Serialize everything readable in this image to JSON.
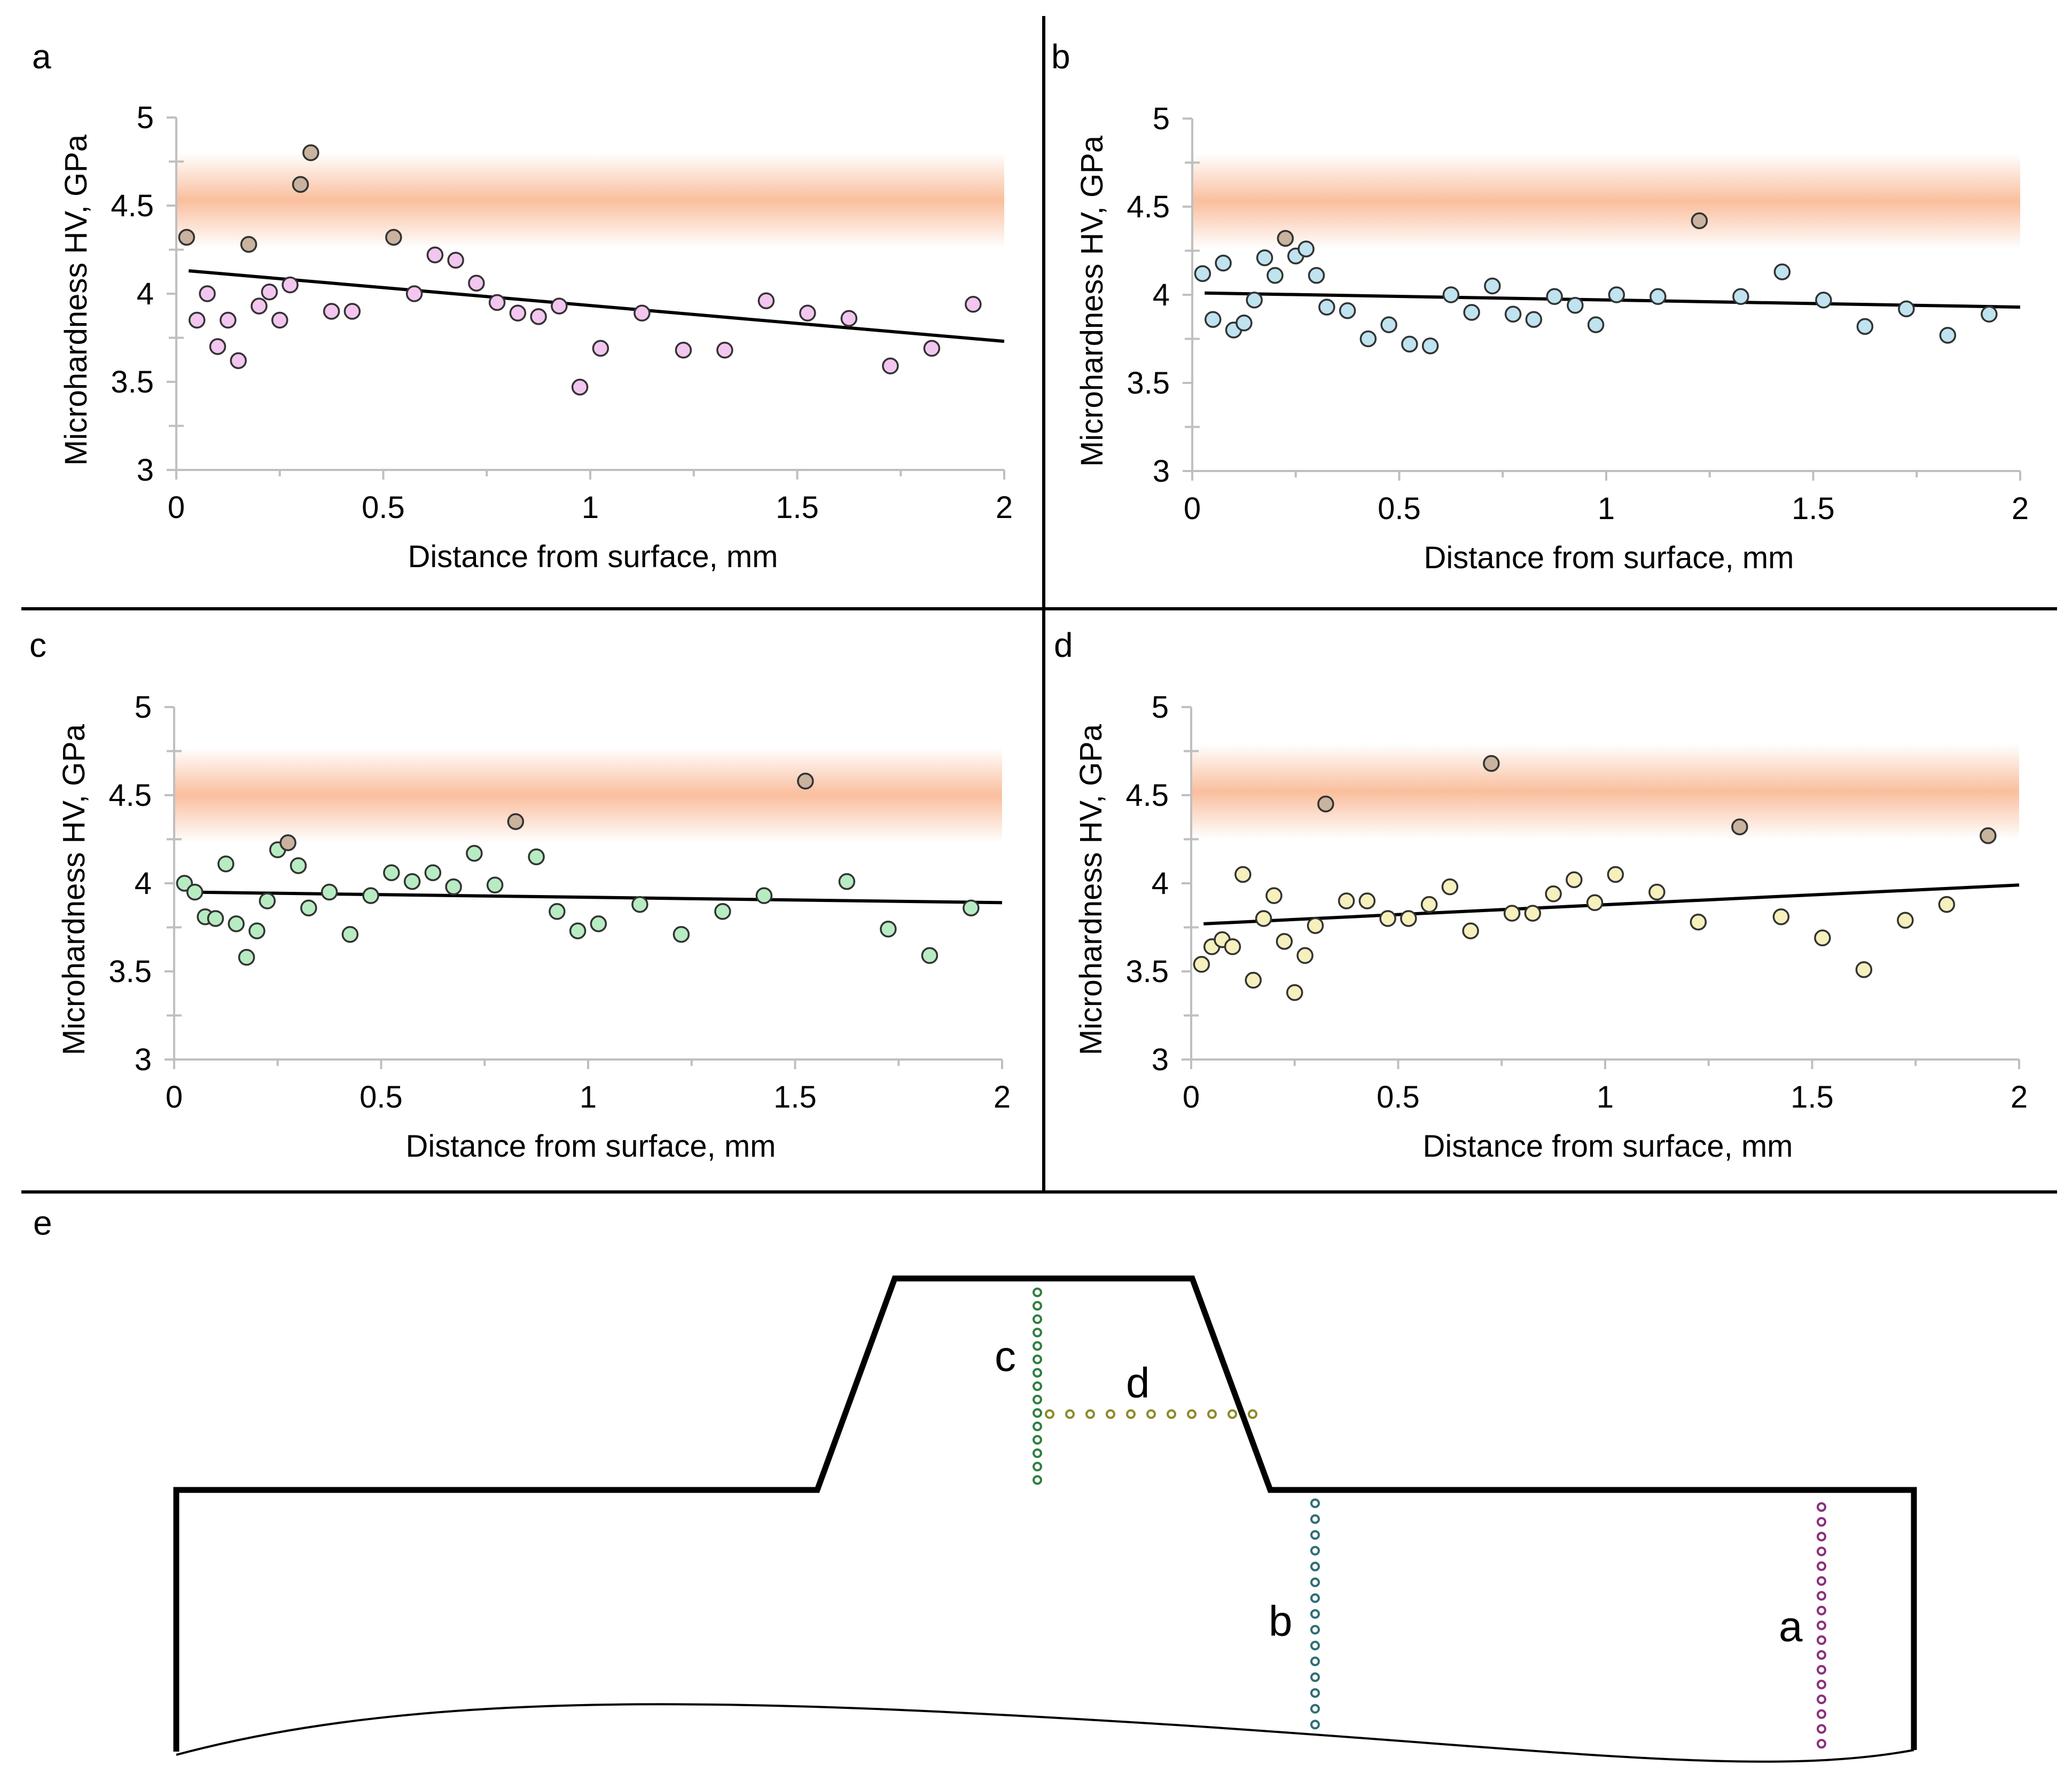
{
  "colors": {
    "band": "#f6935c",
    "panel_a": "#f3c6ef",
    "panel_b": "#bfe3ef",
    "panel_c": "#b7ecc3",
    "panel_d": "#f5f0bc",
    "a_dots": "#8b2f7d",
    "b_dots": "#2f6e77",
    "c_dots": "#2f7f3f",
    "d_dots": "#8c8a2a"
  },
  "chart_data": [
    {
      "id": "a",
      "label": "a",
      "type": "scatter",
      "xlabel": "Distance from surface, mm",
      "ylabel": "Microhardness HV, GPa",
      "xlim": [
        0,
        2
      ],
      "ylim": [
        3,
        5
      ],
      "x_ticks": [
        "0",
        "0.5",
        "1",
        "1.5",
        "2"
      ],
      "y_ticks": [
        "3",
        "3.5",
        "4",
        "4.5",
        "5"
      ],
      "band": {
        "center": 4.53,
        "half_width": 0.27
      },
      "trendline": {
        "x": [
          0.03,
          2.0
        ],
        "y": [
          4.13,
          3.73
        ]
      },
      "points": [
        [
          0.025,
          4.32
        ],
        [
          0.05,
          3.85
        ],
        [
          0.075,
          4.0
        ],
        [
          0.1,
          3.7
        ],
        [
          0.125,
          3.85
        ],
        [
          0.15,
          3.62
        ],
        [
          0.175,
          4.28
        ],
        [
          0.2,
          3.93
        ],
        [
          0.225,
          4.01
        ],
        [
          0.25,
          3.85
        ],
        [
          0.275,
          4.05
        ],
        [
          0.3,
          4.62
        ],
        [
          0.325,
          4.8
        ],
        [
          0.375,
          3.9
        ],
        [
          0.425,
          3.9
        ],
        [
          0.525,
          4.32
        ],
        [
          0.575,
          4.0
        ],
        [
          0.625,
          4.22
        ],
        [
          0.675,
          4.19
        ],
        [
          0.725,
          4.06
        ],
        [
          0.775,
          3.95
        ],
        [
          0.825,
          3.89
        ],
        [
          0.875,
          3.87
        ],
        [
          0.925,
          3.93
        ],
        [
          0.975,
          3.47
        ],
        [
          1.025,
          3.69
        ],
        [
          1.125,
          3.89
        ],
        [
          1.225,
          3.68
        ],
        [
          1.325,
          3.68
        ],
        [
          1.425,
          3.96
        ],
        [
          1.525,
          3.89
        ],
        [
          1.625,
          3.86
        ],
        [
          1.725,
          3.59
        ],
        [
          1.825,
          3.69
        ],
        [
          1.925,
          3.94
        ]
      ]
    },
    {
      "id": "b",
      "label": "b",
      "type": "scatter",
      "xlabel": "Distance from surface, mm",
      "ylabel": "Microhardness HV, GPa",
      "xlim": [
        0,
        2
      ],
      "ylim": [
        3,
        5
      ],
      "x_ticks": [
        "0",
        "0.5",
        "1",
        "1.5",
        "2"
      ],
      "y_ticks": [
        "3",
        "3.5",
        "4",
        "4.5",
        "5"
      ],
      "band": {
        "center": 4.53,
        "half_width": 0.27
      },
      "trendline": {
        "x": [
          0.03,
          2.0
        ],
        "y": [
          4.01,
          3.93
        ]
      },
      "points": [
        [
          0.025,
          4.12
        ],
        [
          0.05,
          3.86
        ],
        [
          0.075,
          4.18
        ],
        [
          0.1,
          3.8
        ],
        [
          0.125,
          3.84
        ],
        [
          0.15,
          3.97
        ],
        [
          0.175,
          4.21
        ],
        [
          0.2,
          4.11
        ],
        [
          0.225,
          4.32
        ],
        [
          0.25,
          4.22
        ],
        [
          0.275,
          4.26
        ],
        [
          0.3,
          4.11
        ],
        [
          0.325,
          3.93
        ],
        [
          0.375,
          3.91
        ],
        [
          0.425,
          3.75
        ],
        [
          0.475,
          3.83
        ],
        [
          0.525,
          3.72
        ],
        [
          0.575,
          3.71
        ],
        [
          0.625,
          4.0
        ],
        [
          0.675,
          3.9
        ],
        [
          0.725,
          4.05
        ],
        [
          0.775,
          3.89
        ],
        [
          0.825,
          3.86
        ],
        [
          0.875,
          3.99
        ],
        [
          0.925,
          3.94
        ],
        [
          0.975,
          3.83
        ],
        [
          1.025,
          4.0
        ],
        [
          1.125,
          3.99
        ],
        [
          1.225,
          4.42
        ],
        [
          1.325,
          3.99
        ],
        [
          1.425,
          4.13
        ],
        [
          1.525,
          3.97
        ],
        [
          1.625,
          3.82
        ],
        [
          1.725,
          3.92
        ],
        [
          1.825,
          3.77
        ],
        [
          1.925,
          3.89
        ]
      ]
    },
    {
      "id": "c",
      "label": "c",
      "type": "scatter",
      "xlabel": "Distance from surface, mm",
      "ylabel": "Microhardness HV, GPa",
      "xlim": [
        0,
        2
      ],
      "ylim": [
        3,
        5
      ],
      "x_ticks": [
        "0",
        "0.5",
        "1",
        "1.5",
        "2"
      ],
      "y_ticks": [
        "3",
        "3.5",
        "4",
        "4.5",
        "5"
      ],
      "band": {
        "center": 4.5,
        "half_width": 0.27
      },
      "trendline": {
        "x": [
          0.03,
          2.0
        ],
        "y": [
          3.95,
          3.89
        ]
      },
      "points": [
        [
          0.025,
          4.0
        ],
        [
          0.05,
          3.95
        ],
        [
          0.075,
          3.81
        ],
        [
          0.1,
          3.8
        ],
        [
          0.125,
          4.11
        ],
        [
          0.15,
          3.77
        ],
        [
          0.175,
          3.58
        ],
        [
          0.2,
          3.73
        ],
        [
          0.225,
          3.9
        ],
        [
          0.25,
          4.19
        ],
        [
          0.275,
          4.23
        ],
        [
          0.3,
          4.1
        ],
        [
          0.325,
          3.86
        ],
        [
          0.375,
          3.95
        ],
        [
          0.425,
          3.71
        ],
        [
          0.475,
          3.93
        ],
        [
          0.525,
          4.06
        ],
        [
          0.575,
          4.01
        ],
        [
          0.625,
          4.06
        ],
        [
          0.675,
          3.98
        ],
        [
          0.725,
          4.17
        ],
        [
          0.775,
          3.99
        ],
        [
          0.825,
          4.35
        ],
        [
          0.875,
          4.15
        ],
        [
          0.925,
          3.84
        ],
        [
          0.975,
          3.73
        ],
        [
          1.025,
          3.77
        ],
        [
          1.125,
          3.88
        ],
        [
          1.225,
          3.71
        ],
        [
          1.325,
          3.84
        ],
        [
          1.425,
          3.93
        ],
        [
          1.525,
          4.58
        ],
        [
          1.625,
          4.01
        ],
        [
          1.725,
          3.74
        ],
        [
          1.825,
          3.59
        ],
        [
          1.925,
          3.86
        ]
      ]
    },
    {
      "id": "d",
      "label": "d",
      "type": "scatter",
      "xlabel": "Distance from surface, mm",
      "ylabel": "Microhardness HV, GPa",
      "xlim": [
        0,
        2
      ],
      "ylim": [
        3,
        5
      ],
      "x_ticks": [
        "0",
        "0.5",
        "1",
        "1.5",
        "2"
      ],
      "y_ticks": [
        "3",
        "3.5",
        "4",
        "4.5",
        "5"
      ],
      "band": {
        "center": 4.52,
        "half_width": 0.27
      },
      "trendline": {
        "x": [
          0.03,
          2.0
        ],
        "y": [
          3.77,
          3.99
        ]
      },
      "points": [
        [
          0.025,
          3.54
        ],
        [
          0.05,
          3.64
        ],
        [
          0.075,
          3.68
        ],
        [
          0.1,
          3.64
        ],
        [
          0.125,
          4.05
        ],
        [
          0.15,
          3.45
        ],
        [
          0.175,
          3.8
        ],
        [
          0.2,
          3.93
        ],
        [
          0.225,
          3.67
        ],
        [
          0.25,
          3.38
        ],
        [
          0.275,
          3.59
        ],
        [
          0.3,
          3.76
        ],
        [
          0.325,
          4.45
        ],
        [
          0.375,
          3.9
        ],
        [
          0.425,
          3.9
        ],
        [
          0.475,
          3.8
        ],
        [
          0.525,
          3.8
        ],
        [
          0.575,
          3.88
        ],
        [
          0.625,
          3.98
        ],
        [
          0.675,
          3.73
        ],
        [
          0.725,
          4.68
        ],
        [
          0.775,
          3.83
        ],
        [
          0.825,
          3.83
        ],
        [
          0.875,
          3.94
        ],
        [
          0.925,
          4.02
        ],
        [
          0.975,
          3.89
        ],
        [
          1.025,
          4.05
        ],
        [
          1.125,
          3.95
        ],
        [
          1.225,
          3.78
        ],
        [
          1.325,
          4.32
        ],
        [
          1.425,
          3.81
        ],
        [
          1.525,
          3.69
        ],
        [
          1.625,
          3.51
        ],
        [
          1.725,
          3.79
        ],
        [
          1.825,
          3.88
        ],
        [
          1.925,
          4.27
        ]
      ]
    }
  ],
  "diagram": {
    "label": "e",
    "lines": [
      {
        "label": "a",
        "count": 17
      },
      {
        "label": "b",
        "count": 15
      },
      {
        "label": "c",
        "count": 15
      },
      {
        "label": "d",
        "count": 11
      }
    ]
  }
}
